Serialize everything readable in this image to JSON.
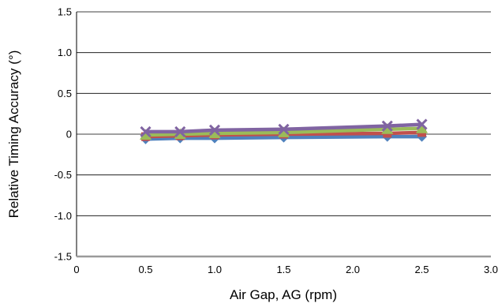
{
  "chart_data": {
    "type": "line",
    "title": "",
    "xlabel": "Air Gap, AG (rpm)",
    "ylabel": "Relative Timing Accuracy (°)",
    "xlim": [
      0,
      3.0
    ],
    "ylim": [
      -1.5,
      1.5
    ],
    "x_ticks": [
      "0",
      "0.5",
      "1.0",
      "1.5",
      "2.0",
      "2.5",
      "3.0"
    ],
    "x_tick_values": [
      0,
      0.5,
      1.0,
      1.5,
      2.0,
      2.5,
      3.0
    ],
    "y_ticks": [
      "1.5",
      "1.0",
      "0.5",
      "0",
      "-0.5",
      "-1.0",
      "-1.5"
    ],
    "y_tick_values": [
      1.5,
      1.0,
      0.5,
      0,
      -0.5,
      -1.0,
      -1.5
    ],
    "grid": "horizontal",
    "x": [
      0.5,
      0.75,
      1.0,
      1.5,
      2.25,
      2.5
    ],
    "series": [
      {
        "color": "#4f81bd",
        "marker": "diamond",
        "values": [
          -0.06,
          -0.05,
          -0.05,
          -0.04,
          -0.03,
          -0.03
        ]
      },
      {
        "color": "#c0504d",
        "marker": "square",
        "values": [
          -0.03,
          -0.02,
          -0.01,
          0.0,
          0.01,
          0.02
        ]
      },
      {
        "color": "#9bbb59",
        "marker": "triangle",
        "values": [
          -0.01,
          0.0,
          0.01,
          0.02,
          0.06,
          0.07
        ]
      },
      {
        "color": "#8064a2",
        "marker": "x",
        "values": [
          0.03,
          0.03,
          0.05,
          0.06,
          0.1,
          0.12
        ]
      }
    ]
  }
}
